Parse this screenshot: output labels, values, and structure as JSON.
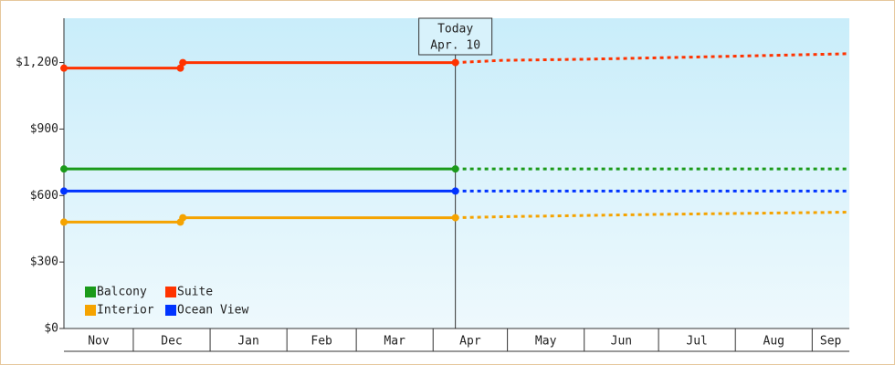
{
  "chart_data": {
    "type": "line",
    "xlim": [
      0,
      317
    ],
    "ylim": [
      0,
      1400
    ],
    "yticks": [
      {
        "value": 0,
        "label": "$0"
      },
      {
        "value": 300,
        "label": "$300"
      },
      {
        "value": 600,
        "label": "$600"
      },
      {
        "value": 900,
        "label": "$900"
      },
      {
        "value": 1200,
        "label": "$1,200"
      }
    ],
    "month_boundaries": [
      28,
      59,
      90,
      118,
      149,
      179,
      210,
      240,
      271,
      302
    ],
    "months": [
      "Nov",
      "Dec",
      "Jan",
      "Feb",
      "Mar",
      "Apr",
      "May",
      "Jun",
      "Jul",
      "Aug",
      "Sep"
    ],
    "today": {
      "x": 158,
      "labels": [
        "Today",
        "Apr. 10"
      ]
    },
    "series": [
      {
        "name": "Balcony",
        "color": "#1a9a1a",
        "x": [
          0,
          158
        ],
        "values": [
          720,
          720
        ],
        "forecast_x": [
          158,
          317
        ],
        "forecast_values": [
          720,
          720
        ]
      },
      {
        "name": "Suite",
        "color": "#ff3300",
        "x": [
          0,
          47,
          48,
          158
        ],
        "values": [
          1175,
          1175,
          1200,
          1200
        ],
        "forecast_x": [
          158,
          177,
          210,
          255,
          317
        ],
        "forecast_values": [
          1200,
          1210,
          1215,
          1225,
          1240
        ]
      },
      {
        "name": "Interior",
        "color": "#f5a300",
        "x": [
          0,
          47,
          48,
          158
        ],
        "values": [
          480,
          480,
          500,
          500
        ],
        "forecast_x": [
          158,
          180,
          240,
          317
        ],
        "forecast_values": [
          500,
          505,
          515,
          525
        ]
      },
      {
        "name": "Ocean View",
        "color": "#0033ff",
        "x": [
          0,
          158
        ],
        "values": [
          620,
          620
        ],
        "forecast_x": [
          158,
          317
        ],
        "forecast_values": [
          620,
          620
        ]
      }
    ]
  }
}
